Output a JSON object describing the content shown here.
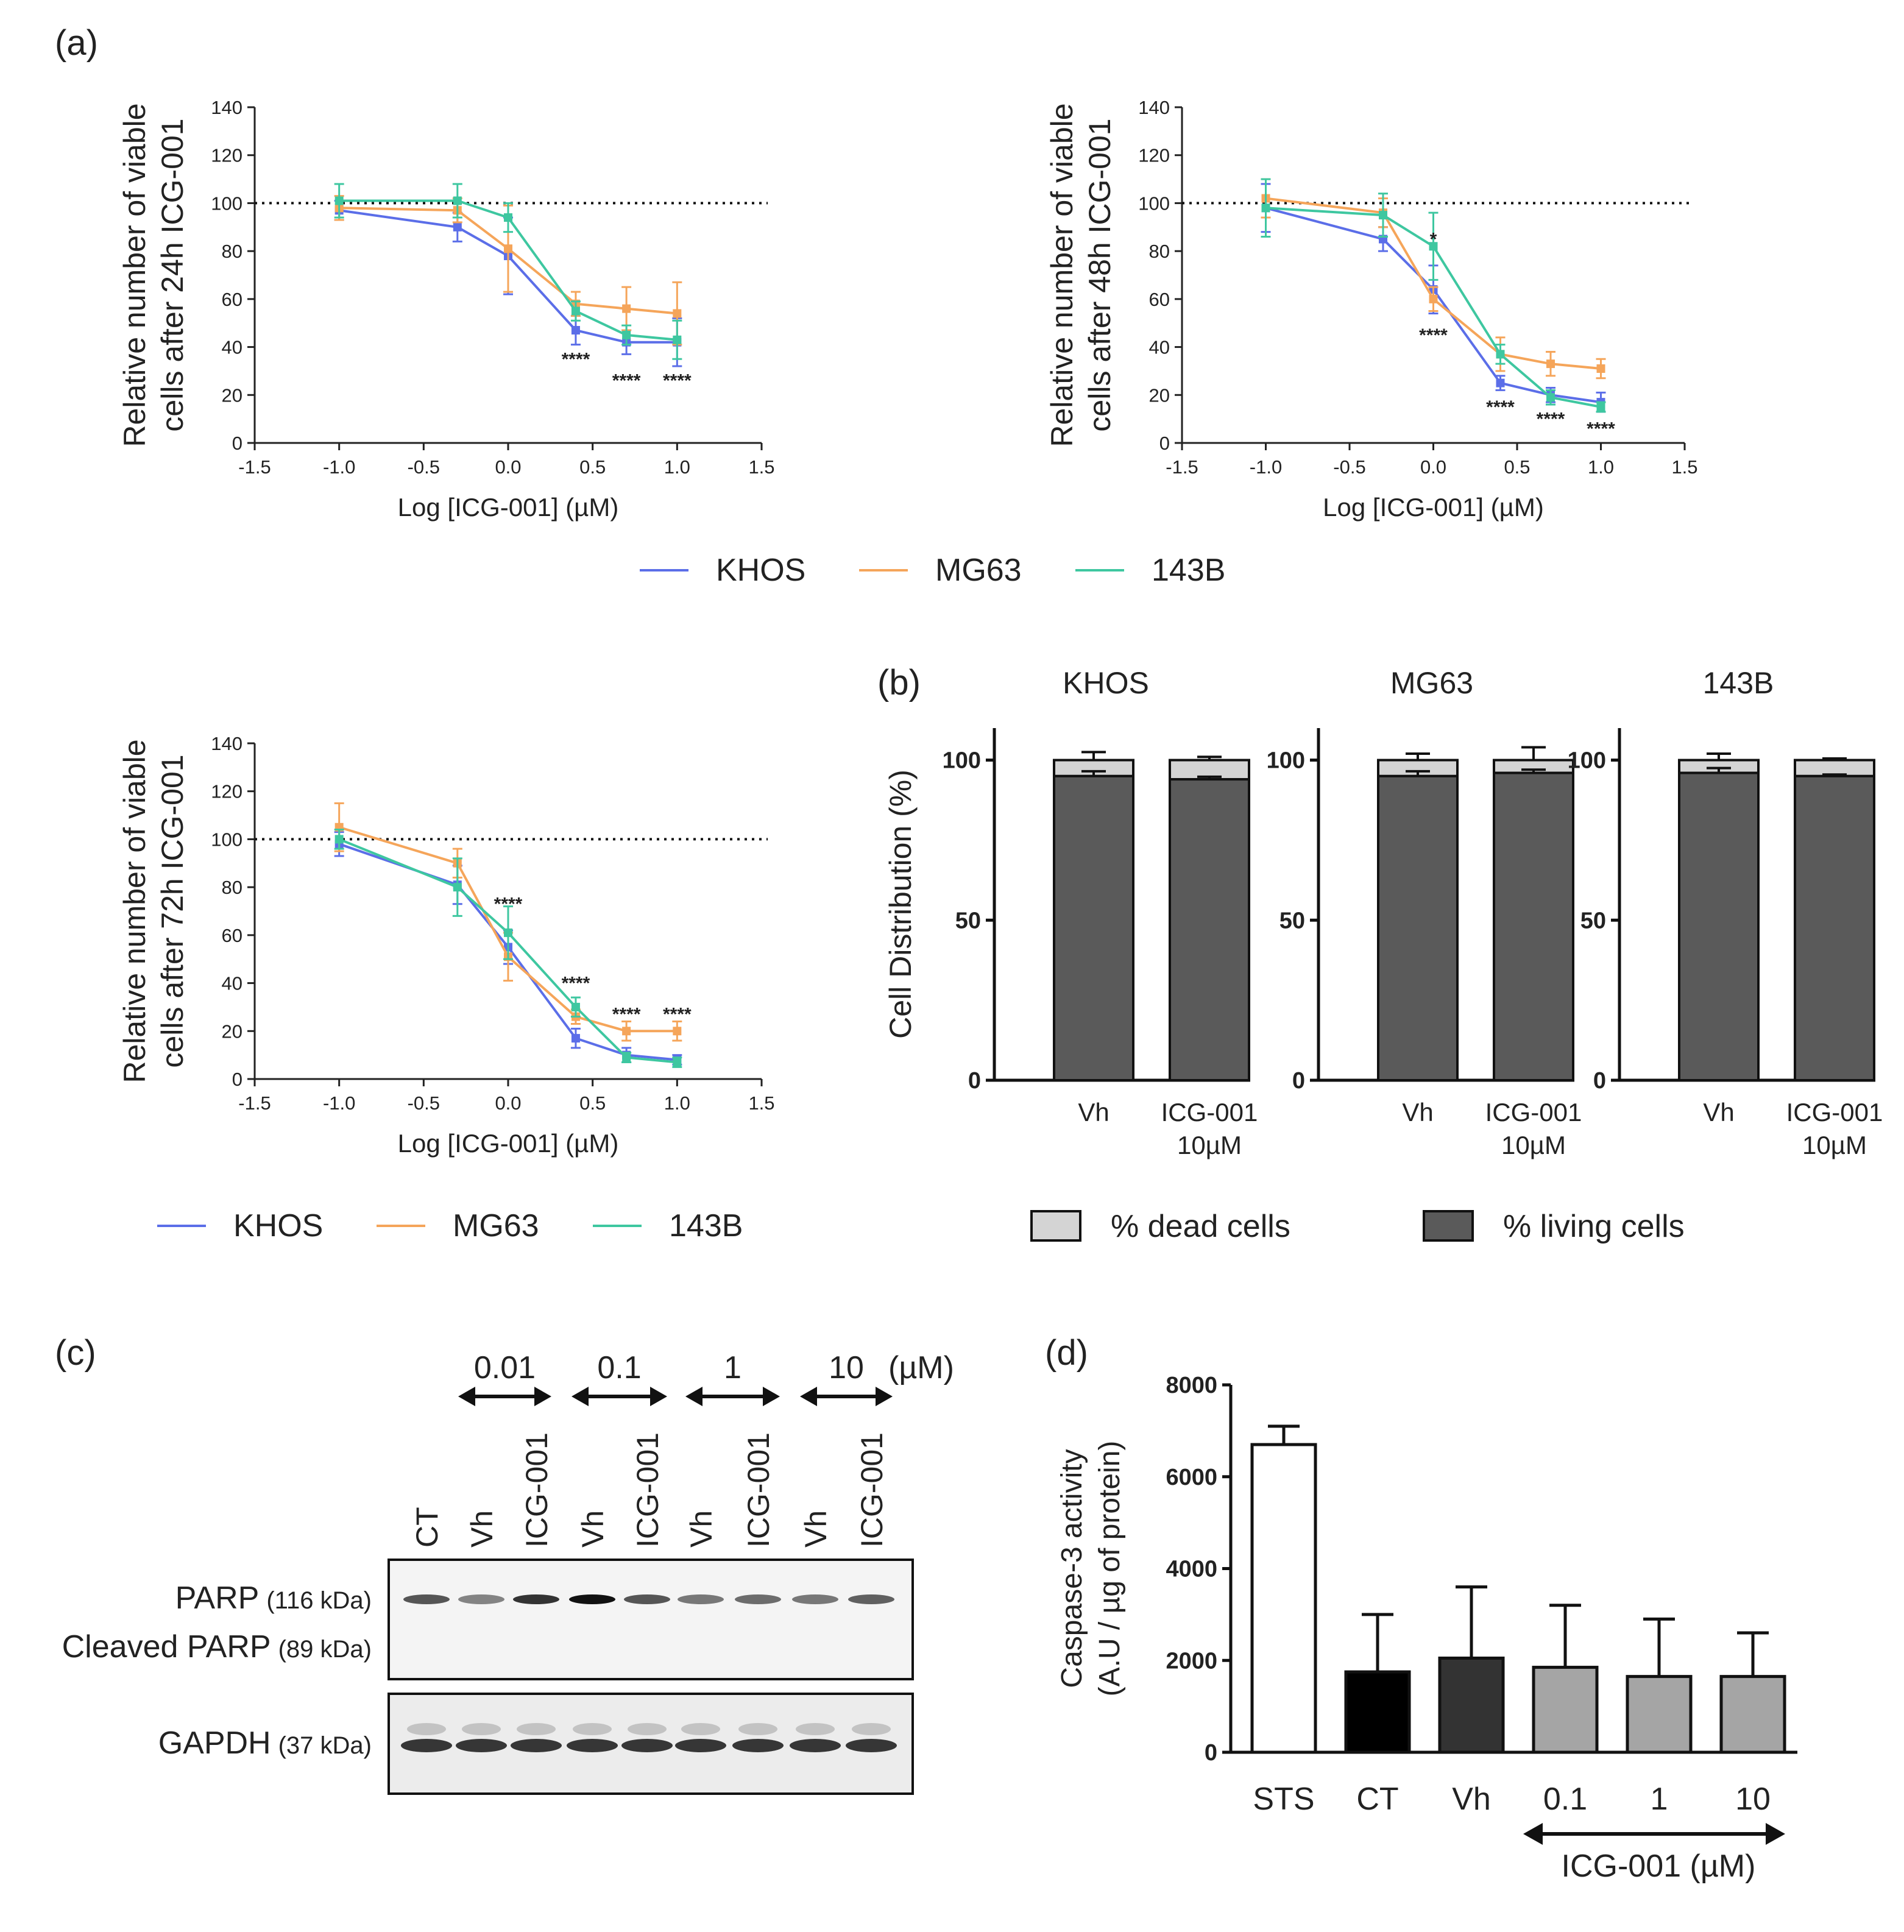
{
  "colors": {
    "khos": "#5b6ee8",
    "mg63": "#f5a55a",
    "c143b": "#3ec7a0",
    "dead": "#d4d4d4",
    "living": "#5a5a5a",
    "sts": "#ffffff",
    "ct": "#000000",
    "vh": "#333333",
    "icg": "#a5a5a5"
  },
  "panels": {
    "a": "(a)",
    "b": "(b)",
    "c": "(c)",
    "d": "(d)"
  },
  "legend_a": {
    "items": [
      {
        "label": "KHOS",
        "color_key": "khos"
      },
      {
        "label": "MG63",
        "color_key": "mg63"
      },
      {
        "label": "143B",
        "color_key": "c143b"
      }
    ]
  },
  "legend_b": {
    "items": [
      {
        "label": "% dead cells",
        "color_key": "dead"
      },
      {
        "label": "% living cells",
        "color_key": "living"
      }
    ]
  },
  "chart_data": [
    {
      "id": "viability-24h",
      "type": "line",
      "title": "",
      "xlabel": "Log [ICG-001] (µM)",
      "ylabel": [
        "Relative number of viable",
        "cells after 24h ICG-001"
      ],
      "xlim": [
        -1.5,
        1.5
      ],
      "ylim": [
        0,
        140
      ],
      "xticks": [
        -1.5,
        -1.0,
        -0.5,
        0.0,
        0.5,
        1.0,
        1.5
      ],
      "xtick_labels": [
        "-1.5",
        "-1.0",
        "-0.5",
        "0.0",
        "0.5",
        "1.0",
        "1.5"
      ],
      "yticks": [
        0,
        20,
        40,
        60,
        80,
        100,
        120,
        140
      ],
      "ytick_labels": [
        "0",
        "20",
        "40",
        "60",
        "80",
        "100",
        "120",
        "140"
      ],
      "reference_line": 100,
      "x": [
        -1.0,
        -0.3,
        0.0,
        0.4,
        0.7,
        1.0
      ],
      "series": [
        {
          "name": "KHOS",
          "color_key": "khos",
          "values": [
            97,
            90,
            78,
            47,
            42,
            42
          ],
          "err": [
            4,
            6,
            16,
            6,
            5,
            10
          ]
        },
        {
          "name": "MG63",
          "color_key": "mg63",
          "values": [
            98,
            97,
            81,
            58,
            56,
            54
          ],
          "err": [
            5,
            5,
            18,
            5,
            9,
            13
          ]
        },
        {
          "name": "143B",
          "color_key": "c143b",
          "values": [
            101,
            101,
            94,
            55,
            45,
            43
          ],
          "err": [
            7,
            7,
            6,
            4,
            4,
            8
          ]
        }
      ],
      "annotations": [
        {
          "x": 0.4,
          "y": 35,
          "text": "****"
        },
        {
          "x": 0.7,
          "y": 26,
          "text": "****"
        },
        {
          "x": 1.0,
          "y": 26,
          "text": "****"
        }
      ]
    },
    {
      "id": "viability-48h",
      "type": "line",
      "title": "",
      "xlabel": "Log [ICG-001] (µM)",
      "ylabel": [
        "Relative number of viable",
        "cells after 48h ICG-001"
      ],
      "xlim": [
        -1.5,
        1.5
      ],
      "ylim": [
        0,
        140
      ],
      "xticks": [
        -1.5,
        -1.0,
        -0.5,
        0.0,
        0.5,
        1.0,
        1.5
      ],
      "xtick_labels": [
        "-1.5",
        "-1.0",
        "-0.5",
        "0.0",
        "0.5",
        "1.0",
        "1.5"
      ],
      "yticks": [
        0,
        20,
        40,
        60,
        80,
        100,
        120,
        140
      ],
      "ytick_labels": [
        "0",
        "20",
        "40",
        "60",
        "80",
        "100",
        "120",
        "140"
      ],
      "reference_line": 100,
      "x": [
        -1.0,
        -0.3,
        0.0,
        0.4,
        0.7,
        1.0
      ],
      "series": [
        {
          "name": "KHOS",
          "color_key": "khos",
          "values": [
            98,
            85,
            64,
            25,
            20,
            17
          ],
          "err": [
            10,
            5,
            10,
            3,
            3,
            4
          ]
        },
        {
          "name": "MG63",
          "color_key": "mg63",
          "values": [
            102,
            96,
            60,
            37,
            33,
            31
          ],
          "err": [
            8,
            6,
            5,
            7,
            5,
            4
          ]
        },
        {
          "name": "143B",
          "color_key": "c143b",
          "values": [
            98,
            95,
            82,
            37,
            19,
            15
          ],
          "err": [
            12,
            9,
            14,
            4,
            3,
            2
          ]
        }
      ],
      "annotations": [
        {
          "x": 0.0,
          "y": 85,
          "text": "*"
        },
        {
          "x": 0.0,
          "y": 45,
          "text": "****"
        },
        {
          "x": 0.4,
          "y": 15,
          "text": "****"
        },
        {
          "x": 0.7,
          "y": 10,
          "text": "****"
        },
        {
          "x": 1.0,
          "y": 6,
          "text": "****"
        }
      ]
    },
    {
      "id": "viability-72h",
      "type": "line",
      "title": "",
      "xlabel": "Log [ICG-001] (µM)",
      "ylabel": [
        "Relative number of viable",
        "cells after 72h ICG-001"
      ],
      "xlim": [
        -1.5,
        1.5
      ],
      "ylim": [
        0,
        140
      ],
      "xticks": [
        -1.5,
        -1.0,
        -0.5,
        0.0,
        0.5,
        1.0,
        1.5
      ],
      "xtick_labels": [
        "-1.5",
        "-1.0",
        "-0.5",
        "0.0",
        "0.5",
        "1.0",
        "1.5"
      ],
      "yticks": [
        0,
        20,
        40,
        60,
        80,
        100,
        120,
        140
      ],
      "ytick_labels": [
        "0",
        "20",
        "40",
        "60",
        "80",
        "100",
        "120",
        "140"
      ],
      "reference_line": 100,
      "x": [
        -1.0,
        -0.3,
        0.0,
        0.4,
        0.7,
        1.0
      ],
      "series": [
        {
          "name": "KHOS",
          "color_key": "khos",
          "values": [
            98,
            81,
            55,
            17,
            10,
            8
          ],
          "err": [
            5,
            8,
            7,
            4,
            3,
            2
          ]
        },
        {
          "name": "MG63",
          "color_key": "mg63",
          "values": [
            105,
            90,
            51,
            26,
            20,
            20
          ],
          "err": [
            10,
            6,
            10,
            3,
            4,
            4
          ]
        },
        {
          "name": "143B",
          "color_key": "c143b",
          "values": [
            100,
            80,
            61,
            30,
            9,
            7
          ],
          "err": [
            4,
            12,
            11,
            4,
            2,
            2
          ]
        }
      ],
      "annotations": [
        {
          "x": 0.0,
          "y": 73,
          "text": "****"
        },
        {
          "x": 0.4,
          "y": 40,
          "text": "****"
        },
        {
          "x": 0.7,
          "y": 27,
          "text": "****"
        },
        {
          "x": 1.0,
          "y": 27,
          "text": "****"
        }
      ]
    },
    {
      "id": "cell-distribution",
      "type": "bar",
      "stacked": true,
      "ylabel": "Cell Distribution (%)",
      "ylim": [
        0,
        110
      ],
      "yticks": [
        0,
        50,
        100
      ],
      "ytick_labels": [
        "0",
        "50",
        "100"
      ],
      "categories": [
        [
          "Vh"
        ],
        [
          "ICG-001",
          "10µM"
        ]
      ],
      "groups": [
        {
          "title": "KHOS",
          "living": [
            95,
            94
          ],
          "dead": [
            5,
            6
          ],
          "living_err": [
            1.5,
            0.8
          ],
          "total_err": [
            2.5,
            1
          ]
        },
        {
          "title": "MG63",
          "living": [
            95,
            96
          ],
          "dead": [
            5,
            4
          ],
          "living_err": [
            1.5,
            1
          ],
          "total_err": [
            2,
            4
          ]
        },
        {
          "title": "143B",
          "living": [
            96,
            95
          ],
          "dead": [
            4,
            5
          ],
          "living_err": [
            1.5,
            0.5
          ],
          "total_err": [
            2,
            0.5
          ]
        }
      ]
    },
    {
      "id": "caspase-3",
      "type": "bar",
      "ylabel": [
        "Caspase-3 activity",
        "(A.U / µg of protein)"
      ],
      "ylim": [
        0,
        8000
      ],
      "yticks": [
        0,
        2000,
        4000,
        6000,
        8000
      ],
      "ytick_labels": [
        "0",
        "2000",
        "4000",
        "6000",
        "8000"
      ],
      "categories": [
        "STS",
        "CT",
        "Vh",
        "0.1",
        "1",
        "10"
      ],
      "values": [
        6700,
        1750,
        2050,
        1850,
        1650,
        1650
      ],
      "err": [
        400,
        1250,
        1550,
        1350,
        1250,
        950
      ],
      "color_keys": [
        "sts",
        "ct",
        "vh",
        "icg",
        "icg",
        "icg"
      ],
      "group_label": "ICG-001 (µM)"
    }
  ],
  "blot": {
    "concentrations": [
      "0.01",
      "0.1",
      "1",
      "10"
    ],
    "unit": "(µM)",
    "lanes": [
      "CT",
      "Vh",
      "ICG-001",
      "Vh",
      "ICG-001",
      "Vh",
      "ICG-001",
      "Vh",
      "ICG-001"
    ],
    "rows": [
      {
        "name": "PARP",
        "kda": "(116 kDa)"
      },
      {
        "name": "Cleaved PARP",
        "kda": "(89 kDa)"
      },
      {
        "name": "GAPDH",
        "kda": "(37 kDa)"
      }
    ],
    "parp_intensity": [
      0.7,
      0.5,
      0.85,
      1.0,
      0.7,
      0.55,
      0.6,
      0.55,
      0.65
    ],
    "gapdh_intensity": [
      0.9,
      0.9,
      0.9,
      0.9,
      0.9,
      0.9,
      0.9,
      0.9,
      0.9
    ]
  }
}
